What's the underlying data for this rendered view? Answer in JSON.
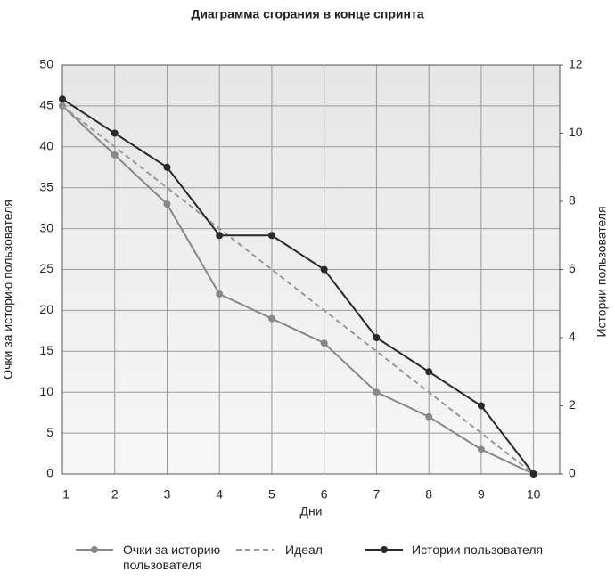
{
  "chart_data": {
    "type": "line",
    "title": "Диаграмма сгорания в конце спринта",
    "x_label": "Дни",
    "y_label": "Очки за историю пользователя",
    "y2_label": "Истории пользователя",
    "x": [
      1,
      2,
      3,
      4,
      5,
      6,
      7,
      8,
      9,
      10
    ],
    "xlim": [
      1,
      10.5
    ],
    "xticks": [
      1,
      2,
      3,
      4,
      5,
      6,
      7,
      8,
      9,
      10
    ],
    "ylim": [
      0,
      50
    ],
    "yticks": [
      0,
      5,
      10,
      15,
      20,
      25,
      30,
      35,
      40,
      45,
      50
    ],
    "y2lim": [
      0,
      12
    ],
    "y2ticks": [
      0,
      2,
      4,
      6,
      8,
      10,
      12
    ],
    "grid": true,
    "series": [
      {
        "name": "Очки за историю пользователя",
        "color": "#888888",
        "markers": true,
        "dashed": false,
        "values": [
          45,
          39,
          33,
          22,
          19,
          16,
          10,
          7,
          3,
          0
        ]
      },
      {
        "name": "Идеал",
        "color": "#999999",
        "markers": false,
        "dashed": true,
        "values": [
          45,
          40,
          35,
          30,
          25,
          20,
          15,
          10,
          5,
          0
        ]
      },
      {
        "name": "Истории пользователя",
        "color": "#2a2a2a",
        "markers": true,
        "dashed": false,
        "axis": "y2",
        "values": [
          11,
          10,
          9,
          7,
          7,
          6,
          4,
          3,
          2,
          0
        ]
      }
    ]
  }
}
